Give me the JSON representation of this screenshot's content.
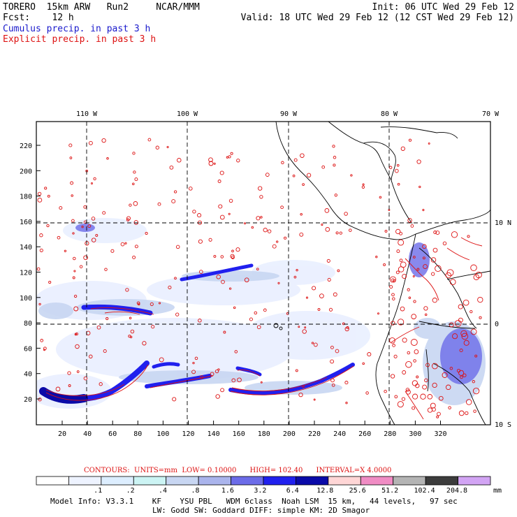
{
  "header": {
    "model": "TORERO",
    "resolution": "15km ARW",
    "run": "Run2",
    "org": "NCAR/MMM",
    "init": "Init: 06 UTC Wed 29 Feb 12",
    "fcst_label": "Fcst:",
    "fcst_value": "12 h",
    "valid": "Valid: 18 UTC Wed 29 Feb 12 (12 CST Wed 29 Feb 12)",
    "field1": "Cumulus precip. in past 3 h",
    "field2": "Explicit precip. in past 3 h"
  },
  "colors": {
    "cumulus": "#1a1acc",
    "explicit": "#dd1111",
    "frame": "#000000"
  },
  "map": {
    "lon_labels": [
      "110 W",
      "100 W",
      "90 W",
      "80 W",
      "70 W"
    ],
    "lat_labels": [
      "10 N",
      "0",
      "10 S"
    ],
    "y_ticks": [
      "20",
      "40",
      "60",
      "80",
      "100",
      "120",
      "140",
      "160",
      "180",
      "200",
      "220"
    ],
    "x_ticks": [
      "20",
      "40",
      "60",
      "80",
      "100",
      "120",
      "140",
      "160",
      "180",
      "200",
      "220",
      "240",
      "260",
      "280",
      "300",
      "320"
    ]
  },
  "colorbar": {
    "values": [
      ".1",
      ".2",
      ".4",
      ".8",
      "1.6",
      "3.2",
      "6.4",
      "12.8",
      "25.6",
      "51.2",
      "102.4",
      "204.8"
    ],
    "unit": "mm",
    "colors": [
      "#ffffff",
      "#eef3ff",
      "#ddeeff",
      "#ccf4f4",
      "#c8d6f2",
      "#aab4ec",
      "#6c6ce8",
      "#2020ee",
      "#0a0aa8",
      "#ffd6d6",
      "#f08cc4",
      "#b4b4b4",
      "#3c3c3c",
      "#d2a4f4"
    ]
  },
  "contours_line": {
    "label": "CONTOURS:",
    "units": "UNITS=mm",
    "low": "LOW= 0.10000",
    "high": "HIGH= 102.40",
    "interval": "INTERVAL=X 4.0000"
  },
  "footer": {
    "line1": "Model Info: V3.3.1    KF    YSU PBL   WDM 6class  Noah LSM  15 km,   44 levels,   97 sec",
    "line2": "LW: Godd SW: Goddard DIFF: simple KM: 2D Smagor"
  }
}
